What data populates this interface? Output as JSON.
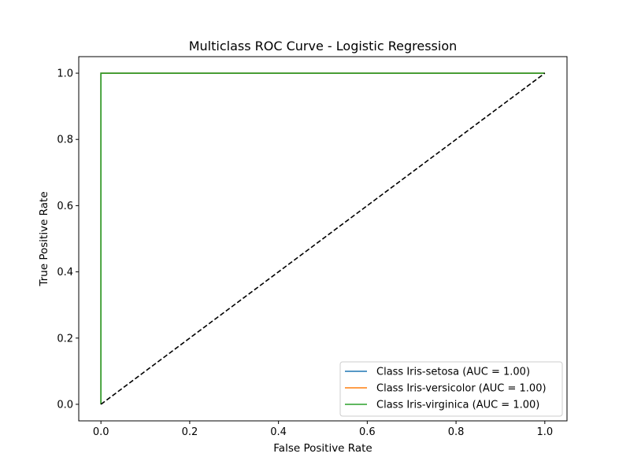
{
  "chart_data": {
    "type": "line",
    "title": "Multiclass ROC Curve - Logistic Regression",
    "xlabel": "False Positive Rate",
    "ylabel": "True Positive Rate",
    "xlim": [
      -0.05,
      1.05
    ],
    "ylim": [
      -0.05,
      1.05
    ],
    "xticks": [
      0.0,
      0.2,
      0.4,
      0.6,
      0.8,
      1.0
    ],
    "yticks": [
      0.0,
      0.2,
      0.4,
      0.6,
      0.8,
      1.0
    ],
    "xtick_labels": [
      "0.0",
      "0.2",
      "0.4",
      "0.6",
      "0.8",
      "1.0"
    ],
    "ytick_labels": [
      "0.0",
      "0.2",
      "0.4",
      "0.6",
      "0.8",
      "1.0"
    ],
    "grid": false,
    "legend_position": "lower-right",
    "series": [
      {
        "name": "Class Iris-setosa (AUC = 1.00)",
        "color": "#1f77b4",
        "x": [
          0.0,
          0.0,
          1.0
        ],
        "y": [
          0.0,
          1.0,
          1.0
        ]
      },
      {
        "name": "Class Iris-versicolor (AUC = 1.00)",
        "color": "#ff7f0e",
        "x": [
          0.0,
          0.0,
          1.0
        ],
        "y": [
          0.0,
          1.0,
          1.0
        ]
      },
      {
        "name": "Class Iris-virginica (AUC = 1.00)",
        "color": "#2ca02c",
        "x": [
          0.0,
          0.0,
          1.0
        ],
        "y": [
          0.0,
          1.0,
          1.0
        ]
      }
    ],
    "reference_line": {
      "x": [
        0.0,
        1.0
      ],
      "y": [
        0.0,
        1.0
      ],
      "color": "#000000",
      "style": "dashed"
    }
  }
}
